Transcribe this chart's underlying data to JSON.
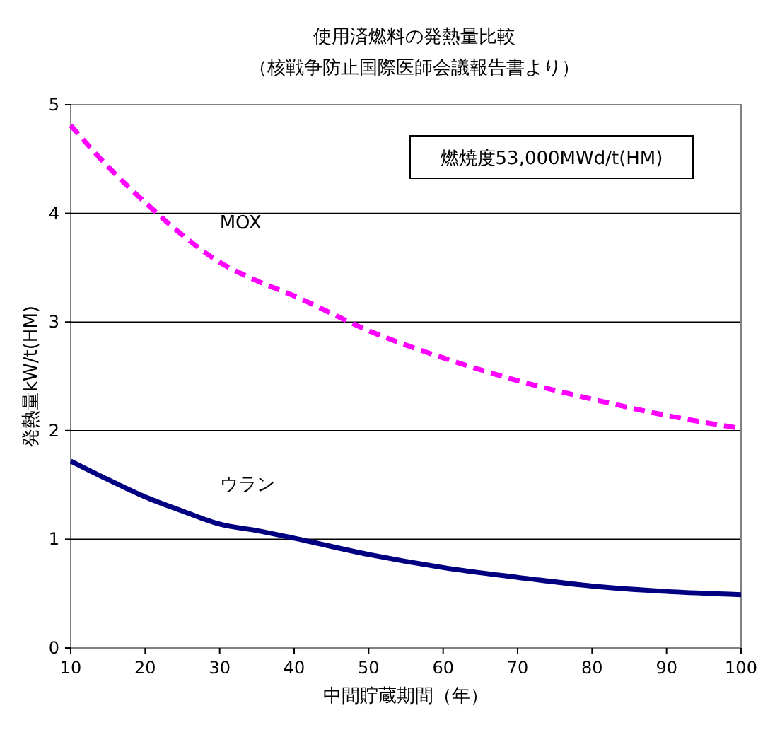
{
  "chart_data": {
    "type": "line",
    "title": "使用済燃料の発熱量比較",
    "subtitle": "（核戦争防止国際医師会議報告書より）",
    "xlabel": "中間貯蔵期間（年）",
    "ylabel": "発熱量kW/t(HM)",
    "annotations": [
      "燃焼度53,000MWd/t(HM)"
    ],
    "x": [
      10,
      15,
      20,
      25,
      30,
      35,
      40,
      50,
      60,
      70,
      80,
      90,
      100
    ],
    "series": [
      {
        "name": "MOX",
        "color": "#ff00ff",
        "line_style": "dashed",
        "values": [
          4.81,
          4.43,
          4.1,
          3.8,
          3.55,
          3.38,
          3.24,
          2.92,
          2.67,
          2.46,
          2.29,
          2.14,
          2.02
        ]
      },
      {
        "name": "ウラン",
        "color": "#000080",
        "line_style": "solid",
        "values": [
          1.72,
          1.55,
          1.39,
          1.26,
          1.14,
          1.08,
          1.01,
          0.86,
          0.74,
          0.65,
          0.57,
          0.52,
          0.49
        ]
      }
    ],
    "xlim": [
      10,
      100
    ],
    "xticks": [
      10,
      20,
      30,
      40,
      50,
      60,
      70,
      80,
      90,
      100
    ],
    "ylim": [
      0,
      5
    ],
    "yticks": [
      0,
      1,
      2,
      3,
      4,
      5
    ],
    "grid": "y",
    "marker": "none"
  }
}
